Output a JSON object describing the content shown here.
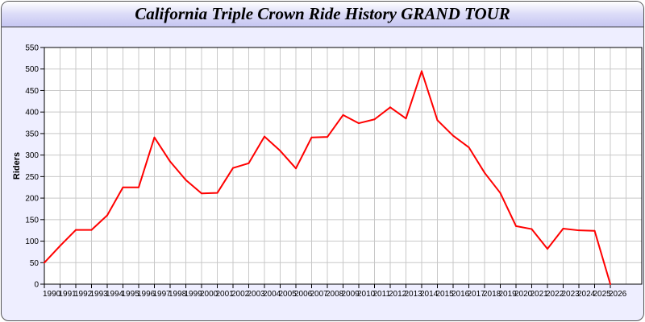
{
  "chart_data": {
    "type": "line",
    "title": "California Triple Crown Ride History GRAND TOUR",
    "xlabel": "",
    "ylabel": "Riders",
    "x": [
      1990,
      1991,
      1992,
      1993,
      1994,
      1995,
      1996,
      1997,
      1998,
      1999,
      2000,
      2001,
      2002,
      2003,
      2004,
      2005,
      2006,
      2007,
      2008,
      2009,
      2010,
      2011,
      2012,
      2013,
      2014,
      2015,
      2016,
      2017,
      2018,
      2019,
      2020,
      2021,
      2022,
      2023,
      2024,
      2025,
      2026
    ],
    "values": [
      50,
      89,
      126,
      126,
      160,
      225,
      225,
      341,
      285,
      242,
      211,
      212,
      270,
      281,
      343,
      310,
      269,
      341,
      342,
      393,
      374,
      383,
      411,
      385,
      495,
      381,
      345,
      318,
      259,
      212,
      135,
      128,
      82,
      129,
      125,
      124,
      0
    ],
    "xlim": [
      1990,
      2028
    ],
    "ylim": [
      0,
      550
    ],
    "yticks": [
      0,
      50,
      100,
      150,
      200,
      250,
      300,
      350,
      400,
      450,
      500,
      550
    ],
    "grid": true,
    "line_color": "#ff0000"
  }
}
